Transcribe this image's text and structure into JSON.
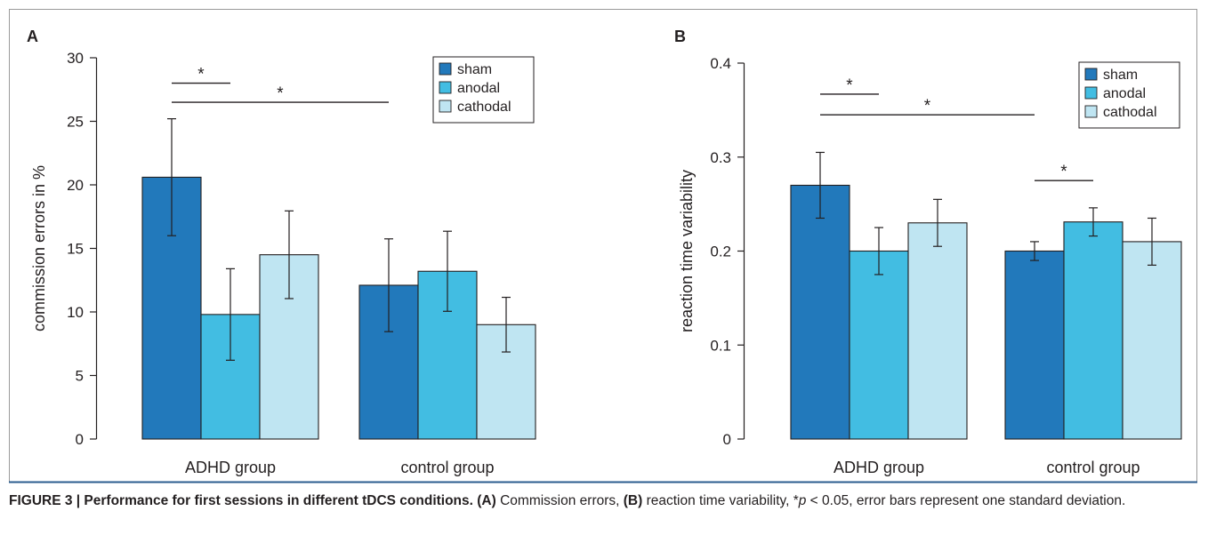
{
  "colors": {
    "sham": "#2279bb",
    "anodal": "#42bde2",
    "cathodal": "#bfe5f2",
    "frame": "#9a9a9a",
    "caption_rule": "#2b5c8f",
    "ink": "#231f20"
  },
  "chart_data": [
    {
      "panel_label": "A",
      "type": "bar",
      "ylabel": "commission errors in %",
      "xlabel": "",
      "categories": [
        "ADHD group",
        "control group"
      ],
      "ylim": [
        0,
        30
      ],
      "yticks": [
        "0",
        "5",
        "10",
        "15",
        "20",
        "25",
        "30"
      ],
      "legend_position": "top-right",
      "series": [
        {
          "name": "sham",
          "values": [
            20.6,
            12.1
          ],
          "error": [
            4.6,
            3.65
          ]
        },
        {
          "name": "anodal",
          "values": [
            9.8,
            13.2
          ],
          "error": [
            3.6,
            3.15
          ]
        },
        {
          "name": "cathodal",
          "values": [
            14.5,
            9.0
          ],
          "error": [
            3.45,
            2.15
          ]
        }
      ],
      "significance": [
        {
          "label": "*",
          "group": 0,
          "from_series": 0,
          "to_series": 1,
          "level": 28.0
        },
        {
          "label": "*",
          "from_group": 0,
          "to_group": 1,
          "series": 0,
          "level": 26.5
        }
      ]
    },
    {
      "panel_label": "B",
      "type": "bar",
      "ylabel": "reaction time variability",
      "xlabel": "",
      "categories": [
        "ADHD group",
        "control group"
      ],
      "ylim": [
        0,
        0.4
      ],
      "yticks": [
        "0",
        "0.1",
        "0.2",
        "0.3",
        "0.4"
      ],
      "legend_position": "top-right",
      "series": [
        {
          "name": "sham",
          "values": [
            0.27,
            0.2
          ],
          "error": [
            0.035,
            0.01
          ]
        },
        {
          "name": "anodal",
          "values": [
            0.2,
            0.231
          ],
          "error": [
            0.025,
            0.015
          ]
        },
        {
          "name": "cathodal",
          "values": [
            0.23,
            0.21
          ],
          "error": [
            0.025,
            0.025
          ]
        }
      ],
      "significance": [
        {
          "label": "*",
          "group": 0,
          "from_series": 0,
          "to_series": 1,
          "level": 0.367
        },
        {
          "label": "*",
          "from_group": 0,
          "to_group": 1,
          "series": 0,
          "level": 0.345
        },
        {
          "label": "*",
          "group": 1,
          "from_series": 0,
          "to_series": 1,
          "level": 0.275
        }
      ]
    }
  ],
  "caption": {
    "figure_label": "FIGURE 3 | Performance for first sessions in different tDCS conditions.",
    "part_a_label": "(A)",
    "part_a_text": " Commission errors, ",
    "part_b_label": "(B)",
    "part_b_text": " reaction time variability, *",
    "p_symbol": "p",
    "p_rest": " < 0.05, error bars represent one standard deviation."
  }
}
